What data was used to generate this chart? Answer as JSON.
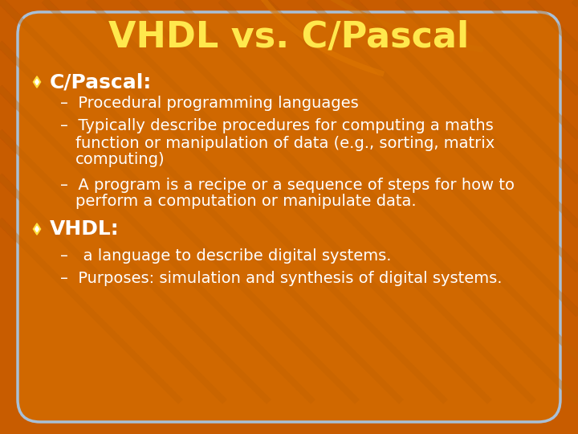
{
  "title": "VHDL vs. C/Pascal",
  "title_color": "#FFE84D",
  "title_fontsize": 32,
  "bg_outer_color": "#C85C00",
  "bg_inner_color": "#D06800",
  "box_border_color": "#A8C0D8",
  "text_color": "#FFFFFF",
  "heading_color": "#FFFFFF",
  "bullet_color": "#FFE040",
  "stripe_color": "#B85000",
  "item_fontsize": 14,
  "heading_fontsize": 18,
  "sections": [
    {
      "heading": "C/Pascal:",
      "items": [
        "Procedural programming languages",
        "Typically describe procedures for computing a maths\nfunction or manipulation of data (e.g., sorting, matrix\ncomputing)",
        "A program is a recipe or a sequence of steps for how to\nperform a computation or manipulate data."
      ]
    },
    {
      "heading": "VHDL:",
      "items": [
        " a language to describe digital systems.",
        "Purposes: simulation and synthesis of digital systems."
      ]
    }
  ]
}
